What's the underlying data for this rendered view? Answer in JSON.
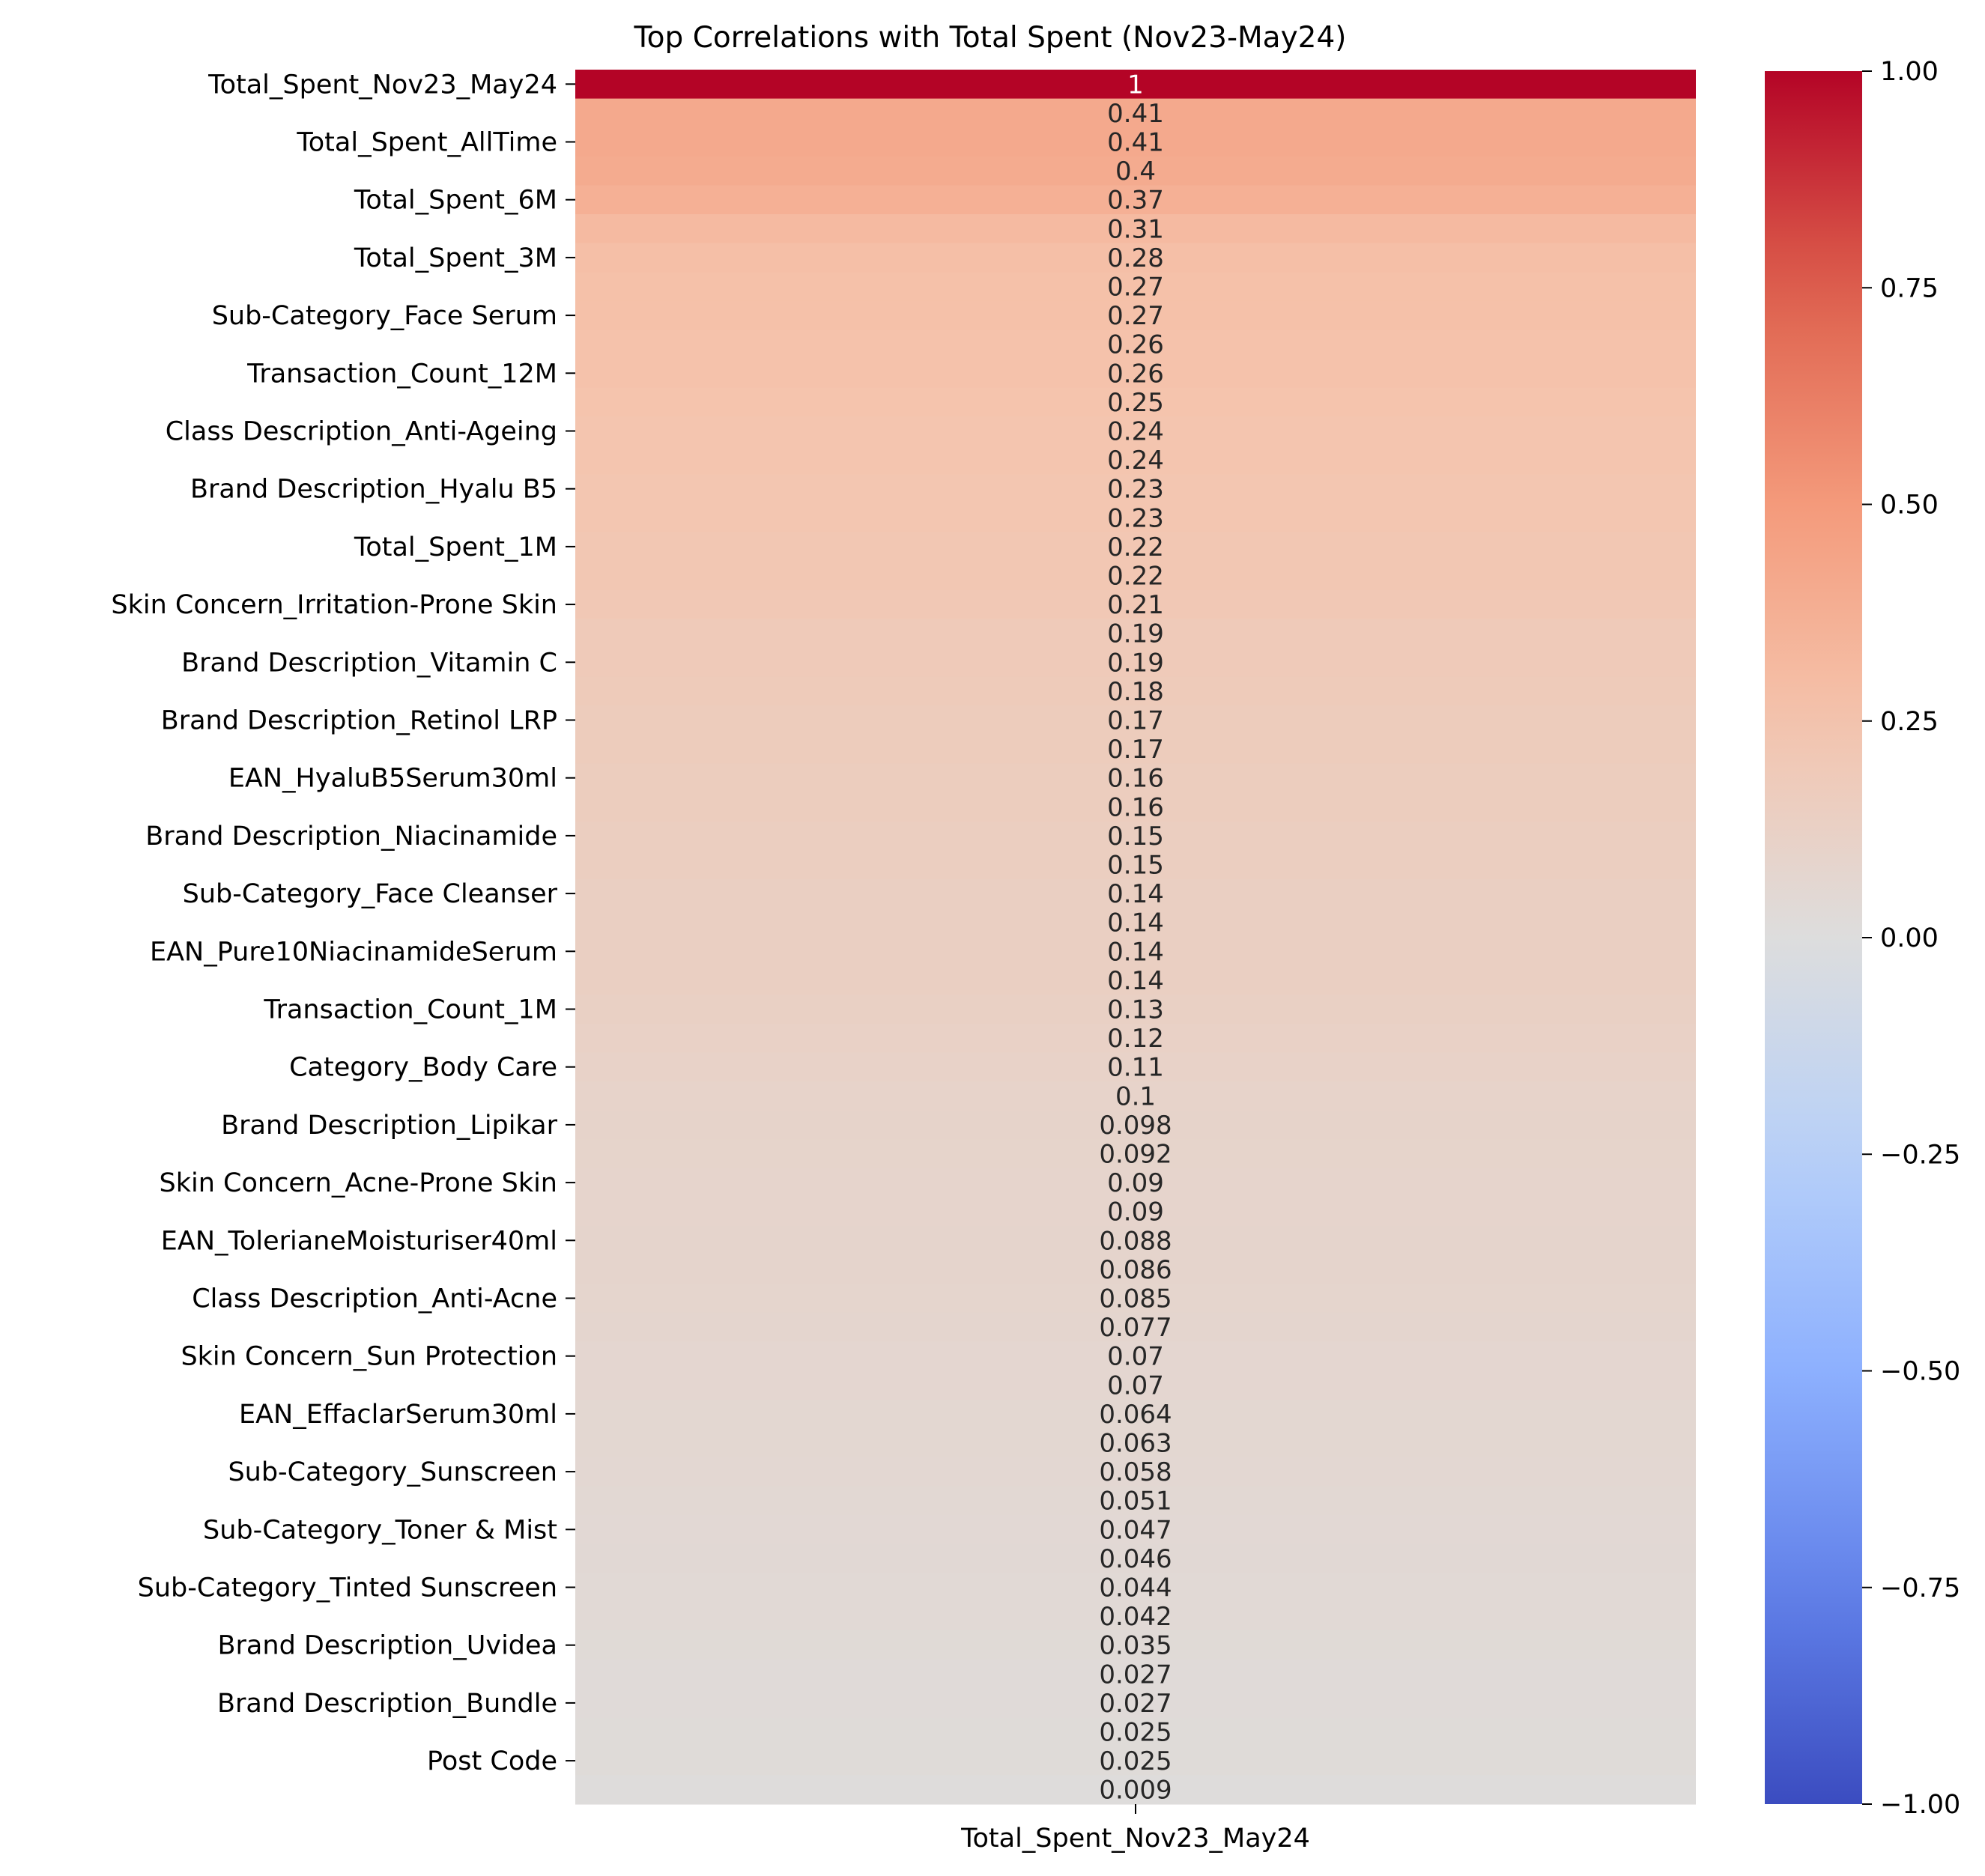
{
  "chart_data": {
    "type": "heatmap",
    "title": "Top Correlations with Total Spent (Nov23-May24)",
    "xlabel": "Total_Spent_Nov23_May24",
    "column": "Total_Spent_Nov23_May24",
    "colormap": "coolwarm",
    "vmin": -1.0,
    "vmax": 1.0,
    "colorbar_ticks": [
      "1.00",
      "0.75",
      "0.50",
      "0.25",
      "0.00",
      "−0.25",
      "−0.50",
      "−0.75",
      "−1.00"
    ],
    "colorbar_tick_values": [
      1.0,
      0.75,
      0.5,
      0.25,
      0.0,
      -0.25,
      -0.5,
      -0.75,
      -1.0
    ],
    "value_labels": [
      "1",
      "0.41",
      "0.41",
      "0.4",
      "0.37",
      "0.31",
      "0.28",
      "0.27",
      "0.27",
      "0.26",
      "0.26",
      "0.25",
      "0.24",
      "0.24",
      "0.23",
      "0.23",
      "0.22",
      "0.22",
      "0.21",
      "0.19",
      "0.19",
      "0.18",
      "0.17",
      "0.17",
      "0.16",
      "0.16",
      "0.15",
      "0.15",
      "0.14",
      "0.14",
      "0.14",
      "0.14",
      "0.13",
      "0.12",
      "0.11",
      "0.1",
      "0.098",
      "0.092",
      "0.09",
      "0.09",
      "0.088",
      "0.086",
      "0.085",
      "0.077",
      "0.07",
      "0.07",
      "0.064",
      "0.063",
      "0.058",
      "0.051",
      "0.047",
      "0.046",
      "0.044",
      "0.042",
      "0.035",
      "0.027",
      "0.027",
      "0.025",
      "0.025",
      "0.009"
    ],
    "values": [
      1.0,
      0.41,
      0.41,
      0.4,
      0.37,
      0.31,
      0.28,
      0.27,
      0.27,
      0.26,
      0.26,
      0.25,
      0.24,
      0.24,
      0.23,
      0.23,
      0.22,
      0.22,
      0.21,
      0.19,
      0.19,
      0.18,
      0.17,
      0.17,
      0.16,
      0.16,
      0.15,
      0.15,
      0.14,
      0.14,
      0.14,
      0.14,
      0.13,
      0.12,
      0.11,
      0.1,
      0.098,
      0.092,
      0.09,
      0.09,
      0.088,
      0.086,
      0.085,
      0.077,
      0.07,
      0.07,
      0.064,
      0.063,
      0.058,
      0.051,
      0.047,
      0.046,
      0.044,
      0.042,
      0.035,
      0.027,
      0.027,
      0.025,
      0.025,
      0.009
    ],
    "row_labels": [
      {
        "row": 0,
        "label": "Total_Spent_Nov23_May24"
      },
      {
        "row": 2,
        "label": "Total_Spent_AllTime"
      },
      {
        "row": 4,
        "label": "Total_Spent_6M"
      },
      {
        "row": 6,
        "label": "Total_Spent_3M"
      },
      {
        "row": 8,
        "label": "Sub-Category_Face Serum"
      },
      {
        "row": 10,
        "label": "Transaction_Count_12M"
      },
      {
        "row": 12,
        "label": "Class Description_Anti-Ageing"
      },
      {
        "row": 14,
        "label": "Brand Description_Hyalu B5"
      },
      {
        "row": 16,
        "label": "Total_Spent_1M"
      },
      {
        "row": 18,
        "label": "Skin Concern_Irritation-Prone Skin"
      },
      {
        "row": 20,
        "label": "Brand Description_Vitamin C"
      },
      {
        "row": 22,
        "label": "Brand Description_Retinol LRP"
      },
      {
        "row": 24,
        "label": "EAN_HyaluB5Serum30ml"
      },
      {
        "row": 26,
        "label": "Brand Description_Niacinamide"
      },
      {
        "row": 28,
        "label": "Sub-Category_Face Cleanser"
      },
      {
        "row": 30,
        "label": "EAN_Pure10NiacinamideSerum"
      },
      {
        "row": 32,
        "label": "Transaction_Count_1M"
      },
      {
        "row": 34,
        "label": "Category_Body Care"
      },
      {
        "row": 36,
        "label": "Brand Description_Lipikar"
      },
      {
        "row": 38,
        "label": "Skin Concern_Acne-Prone Skin"
      },
      {
        "row": 40,
        "label": "EAN_TolerianeMoisturiser40ml"
      },
      {
        "row": 42,
        "label": "Class Description_Anti-Acne"
      },
      {
        "row": 44,
        "label": "Skin Concern_Sun Protection"
      },
      {
        "row": 46,
        "label": "EAN_EffaclarSerum30ml"
      },
      {
        "row": 48,
        "label": "Sub-Category_Sunscreen"
      },
      {
        "row": 50,
        "label": "Sub-Category_Toner & Mist"
      },
      {
        "row": 52,
        "label": "Sub-Category_Tinted Sunscreen"
      },
      {
        "row": 54,
        "label": "Brand Description_Uvidea"
      },
      {
        "row": 56,
        "label": "Brand Description_Bundle"
      },
      {
        "row": 58,
        "label": "Post Code"
      }
    ]
  }
}
